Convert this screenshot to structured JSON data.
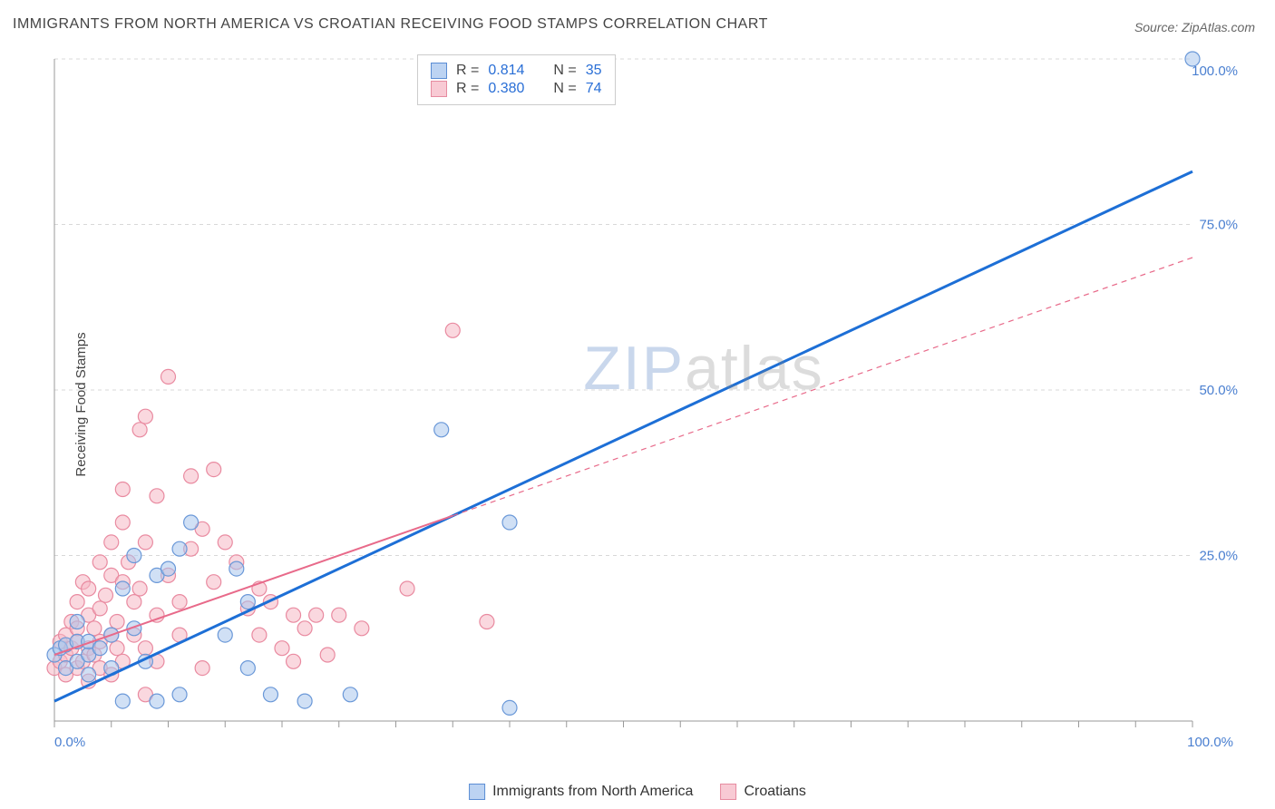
{
  "meta": {
    "title": "IMMIGRANTS FROM NORTH AMERICA VS CROATIAN RECEIVING FOOD STAMPS CORRELATION CHART",
    "source_prefix": "Source: ",
    "source": "ZipAtlas.com",
    "ylabel": "Receiving Food Stamps",
    "watermark_a": "ZIP",
    "watermark_b": "atlas"
  },
  "chart": {
    "type": "scatter",
    "xlim": [
      0,
      100
    ],
    "ylim": [
      0,
      100
    ],
    "xtick_0": "0.0%",
    "xtick_100": "100.0%",
    "ytick_25": "25.0%",
    "ytick_50": "50.0%",
    "ytick_75": "75.0%",
    "ytick_100": "100.0%",
    "grid_color": "#d8d8d8",
    "axis_color": "#999999",
    "background": "#ffffff",
    "tick_positions_x": [
      0,
      5,
      10,
      15,
      20,
      25,
      30,
      35,
      40,
      45,
      50,
      55,
      60,
      65,
      70,
      75,
      80,
      85,
      90,
      95,
      100
    ],
    "gridlines_y": [
      0,
      25,
      50,
      75,
      100
    ]
  },
  "series": {
    "blue": {
      "label": "Immigrants from North America",
      "fill": "#a9c6ec",
      "stroke": "#6a98d8",
      "fill_opacity": 0.55,
      "marker_r": 8,
      "R_label": "R = ",
      "R": "0.814",
      "N_label": "N = ",
      "N": "35",
      "trend_color": "#1d6fd6",
      "trend_width": 3,
      "trend_dash": "none",
      "trend_p1": [
        0,
        3
      ],
      "trend_p2": [
        100,
        83
      ],
      "points": [
        [
          0,
          10
        ],
        [
          0.5,
          11
        ],
        [
          1,
          11.5
        ],
        [
          1,
          8
        ],
        [
          2,
          9
        ],
        [
          2,
          12
        ],
        [
          2,
          15
        ],
        [
          3,
          10
        ],
        [
          3,
          12
        ],
        [
          3,
          7
        ],
        [
          4,
          11
        ],
        [
          5,
          13
        ],
        [
          5,
          8
        ],
        [
          6,
          20
        ],
        [
          6,
          3
        ],
        [
          7,
          14
        ],
        [
          7,
          25
        ],
        [
          8,
          9
        ],
        [
          9,
          22
        ],
        [
          9,
          3
        ],
        [
          10,
          23
        ],
        [
          11,
          26
        ],
        [
          11,
          4
        ],
        [
          12,
          30
        ],
        [
          15,
          13
        ],
        [
          16,
          23
        ],
        [
          17,
          8
        ],
        [
          17,
          18
        ],
        [
          19,
          4
        ],
        [
          22,
          3
        ],
        [
          26,
          4
        ],
        [
          34,
          44
        ],
        [
          40,
          30
        ],
        [
          40,
          2
        ],
        [
          100,
          100
        ]
      ]
    },
    "pink": {
      "label": "Croatians",
      "fill": "#f6b8c5",
      "stroke": "#e98aa0",
      "fill_opacity": 0.55,
      "marker_r": 8,
      "R_label": "R = ",
      "R": "0.380",
      "N_label": "N = ",
      "N": "74",
      "trend_color": "#e86a8a",
      "trend_width": 2,
      "trend_dash_solid_until": 35,
      "trend_dash": "6 5",
      "trend_p1": [
        0,
        10
      ],
      "trend_p2": [
        100,
        70
      ],
      "points": [
        [
          0,
          8
        ],
        [
          0.5,
          9
        ],
        [
          0.5,
          12
        ],
        [
          1,
          10
        ],
        [
          1,
          7
        ],
        [
          1,
          13
        ],
        [
          1.5,
          11
        ],
        [
          1.5,
          15
        ],
        [
          2,
          8
        ],
        [
          2,
          12
        ],
        [
          2,
          14
        ],
        [
          2,
          18
        ],
        [
          2.5,
          9
        ],
        [
          2.5,
          21
        ],
        [
          3,
          6
        ],
        [
          3,
          11
        ],
        [
          3,
          16
        ],
        [
          3,
          20
        ],
        [
          3.5,
          10
        ],
        [
          3.5,
          14
        ],
        [
          4,
          8
        ],
        [
          4,
          12
        ],
        [
          4,
          17
        ],
        [
          4,
          24
        ],
        [
          4.5,
          19
        ],
        [
          5,
          7
        ],
        [
          5,
          13
        ],
        [
          5,
          22
        ],
        [
          5,
          27
        ],
        [
          5.5,
          11
        ],
        [
          5.5,
          15
        ],
        [
          6,
          9
        ],
        [
          6,
          21
        ],
        [
          6,
          30
        ],
        [
          6,
          35
        ],
        [
          6.5,
          24
        ],
        [
          7,
          13
        ],
        [
          7,
          18
        ],
        [
          7.5,
          20
        ],
        [
          7.5,
          44
        ],
        [
          8,
          4
        ],
        [
          8,
          11
        ],
        [
          8,
          27
        ],
        [
          8,
          46
        ],
        [
          9,
          9
        ],
        [
          9,
          16
        ],
        [
          9,
          34
        ],
        [
          10,
          22
        ],
        [
          10,
          52
        ],
        [
          11,
          13
        ],
        [
          11,
          18
        ],
        [
          12,
          26
        ],
        [
          12,
          37
        ],
        [
          13,
          8
        ],
        [
          13,
          29
        ],
        [
          14,
          21
        ],
        [
          14,
          38
        ],
        [
          15,
          27
        ],
        [
          16,
          24
        ],
        [
          17,
          17
        ],
        [
          18,
          13
        ],
        [
          18,
          20
        ],
        [
          19,
          18
        ],
        [
          20,
          11
        ],
        [
          21,
          16
        ],
        [
          21,
          9
        ],
        [
          22,
          14
        ],
        [
          23,
          16
        ],
        [
          24,
          10
        ],
        [
          25,
          16
        ],
        [
          27,
          14
        ],
        [
          31,
          20
        ],
        [
          35,
          59
        ],
        [
          38,
          15
        ]
      ]
    }
  },
  "colors": {
    "blue_swatch_fill": "#bcd3f2",
    "blue_swatch_stroke": "#5b8dd4",
    "pink_swatch_fill": "#f8cad4",
    "pink_swatch_stroke": "#e68ba0",
    "label_text": "#444444",
    "value_blue": "#2a6fd6"
  }
}
